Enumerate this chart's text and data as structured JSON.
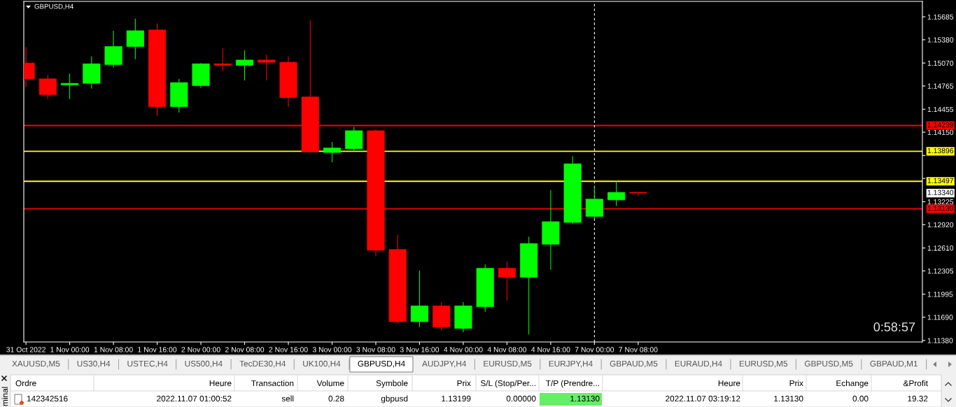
{
  "chart_data": {
    "type": "candlestick",
    "title": "GBPUSD,H4",
    "categories": [
      "31 Oct 2022",
      null,
      "1 Nov 00:00",
      null,
      "1 Nov 08:00",
      null,
      "1 Nov 16:00",
      null,
      "2 Nov 00:00",
      null,
      "2 Nov 08:00",
      null,
      "2 Nov 16:00",
      null,
      "3 Nov 00:00",
      null,
      "3 Nov 08:00",
      null,
      "3 Nov 16:00",
      null,
      "4 Nov 00:00",
      null,
      "4 Nov 08:00",
      null,
      "4 Nov 16:00",
      null,
      "7 Nov 00:00",
      null,
      "7 Nov 08:00",
      null,
      null,
      null,
      null,
      null,
      null,
      null,
      null,
      null,
      null,
      null,
      null
    ],
    "ohlc": [
      [
        1.1507,
        1.1528,
        1.1475,
        1.1486
      ],
      [
        1.1486,
        1.1491,
        1.1459,
        1.1465
      ],
      [
        1.1478,
        1.1493,
        1.1459,
        1.148
      ],
      [
        1.148,
        1.1516,
        1.1473,
        1.1506
      ],
      [
        1.1505,
        1.155,
        1.1501,
        1.1529
      ],
      [
        1.1529,
        1.1566,
        1.1512,
        1.155
      ],
      [
        1.1551,
        1.156,
        1.1437,
        1.1449
      ],
      [
        1.1449,
        1.1486,
        1.1441,
        1.1481
      ],
      [
        1.1477,
        1.1507,
        1.1474,
        1.1506
      ],
      [
        1.1506,
        1.1527,
        1.1496,
        1.1504
      ],
      [
        1.1504,
        1.1524,
        1.1484,
        1.1511
      ],
      [
        1.1511,
        1.1518,
        1.1484,
        1.1508
      ],
      [
        1.1508,
        1.1516,
        1.1449,
        1.1461
      ],
      [
        1.1462,
        1.1564,
        1.1388,
        1.1389
      ],
      [
        1.1388,
        1.1402,
        1.1375,
        1.1394
      ],
      [
        1.1393,
        1.1422,
        1.1391,
        1.1417
      ],
      [
        1.1417,
        1.1419,
        1.125,
        1.1258
      ],
      [
        1.1259,
        1.1279,
        1.1161,
        1.1163
      ],
      [
        1.1163,
        1.1231,
        1.1156,
        1.1184
      ],
      [
        1.1184,
        1.1189,
        1.1151,
        1.1156
      ],
      [
        1.1154,
        1.1189,
        1.1149,
        1.1184
      ],
      [
        1.1183,
        1.1239,
        1.1176,
        1.1234
      ],
      [
        1.1234,
        1.1243,
        1.1191,
        1.1222
      ],
      [
        1.1222,
        1.1276,
        1.1146,
        1.1267
      ],
      [
        1.1266,
        1.1338,
        1.1232,
        1.1296
      ],
      [
        1.1295,
        1.1383,
        1.1293,
        1.1373
      ],
      [
        1.1303,
        1.1343,
        1.13,
        1.1326
      ],
      [
        1.1325,
        1.135,
        1.1317,
        1.1335
      ],
      [
        1.1335,
        1.1335,
        1.133,
        1.1334
      ],
      null,
      null,
      null,
      null,
      null,
      null,
      null,
      null,
      null,
      null,
      null,
      null
    ],
    "colors": [
      "#ff0000",
      "#ff0000",
      "#00ff00",
      "#00ff00",
      "#00ff00",
      "#00ff00",
      "#ff0000",
      "#00ff00",
      "#00ff00",
      "#ff0000",
      "#00ff00",
      "#ff0000",
      "#ff0000",
      "#ff0000",
      "#00ff00",
      "#00ff00",
      "#ff0000",
      "#ff0000",
      "#00ff00",
      "#ff0000",
      "#00ff00",
      "#00ff00",
      "#ff0000",
      "#00ff00",
      "#00ff00",
      "#00ff00",
      "#00ff00",
      "#00ff00",
      "#ff0000",
      null,
      null,
      null,
      null,
      null,
      null,
      null,
      null,
      null,
      null,
      null,
      null
    ],
    "ylim": [
      1.1136,
      1.1589
    ],
    "yticks": [
      {
        "value": 1.15685,
        "label": "1.15685"
      },
      {
        "value": 1.1538,
        "label": "1.15380"
      },
      {
        "value": 1.1507,
        "label": "1.15070"
      },
      {
        "value": 1.14765,
        "label": "1.14765"
      },
      {
        "value": 1.14455,
        "label": "1.14455"
      },
      {
        "value": 1.1415,
        "label": "1.14150"
      },
      {
        "value": 1.1384,
        "label": null
      },
      {
        "value": 1.13535,
        "label": null
      },
      {
        "value": 1.13225,
        "label": "1.13225"
      },
      {
        "value": 1.1292,
        "label": "1.12920"
      },
      {
        "value": 1.1261,
        "label": "1.12610"
      },
      {
        "value": 1.12305,
        "label": "1.12305"
      },
      {
        "value": 1.11995,
        "label": "1.11995"
      },
      {
        "value": 1.1169,
        "label": "1.11690"
      },
      {
        "value": 1.1138,
        "label": "1.11380"
      }
    ],
    "ref_lines": [
      {
        "axis": "y",
        "value": 1.14239,
        "label": "1.14239",
        "color": "#ff0000"
      },
      {
        "axis": "y",
        "value": 1.13896,
        "label": "1.13896",
        "color": "#ffff00"
      },
      {
        "axis": "y",
        "value": 1.13497,
        "label": "1.13497",
        "color": "#ffff00"
      },
      {
        "axis": "y",
        "value": 1.1313,
        "label": "1.13130",
        "color": "#ff0000"
      },
      {
        "axis": "x",
        "value": "7 Nov 00:00",
        "color": "#ffffff",
        "line_style": "dashed"
      }
    ],
    "annotations": [
      "0:58:57",
      "XAUUSD,M5",
      "US30,H4",
      "USTEC,H4",
      "US500,H4",
      "TecDE30,H4",
      "UK100,H4",
      "GBPUSD,H4",
      "AUDJPY,H4",
      "EURUSD,M5",
      "EURJPY,H4",
      "GBPAUD,M5",
      "EURAUD,H4",
      "EURUSD,M5",
      "GBPUSD,M5",
      "GBPAUD,M1",
      "Ordre",
      "Heure",
      "Transaction",
      "Volume",
      "Symbole",
      "Prix",
      "S/L (Stop/Per...",
      "T/P (Prendre...",
      "Heure",
      "Prix",
      "Echange",
      "&Profit",
      "142342516",
      "2022.11.07 01:00:52",
      "sell",
      "0.28",
      "gbpusd",
      "1.13199",
      "0.00000",
      "1.13130",
      "2022.11.07 03:19:12",
      "1.13130",
      "0.00",
      "19.32",
      "minal",
      "1.13340"
    ]
  }
}
